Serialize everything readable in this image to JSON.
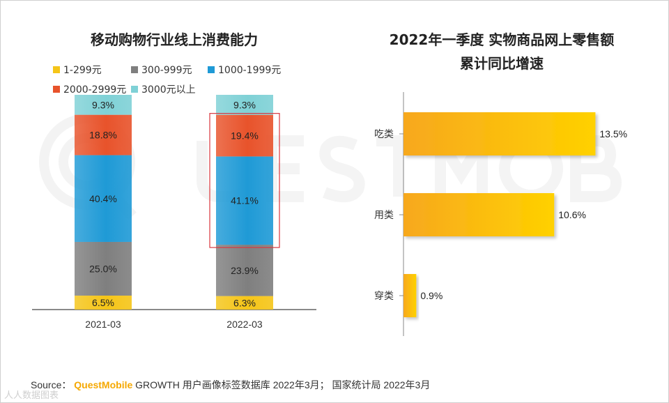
{
  "left_panel": {
    "title": "移动购物行业线上消费能力",
    "legend": [
      {
        "label": "1-299元",
        "color": "#f5c518"
      },
      {
        "label": "300-999元",
        "color": "#7f7f7f"
      },
      {
        "label": "1000-1999元",
        "color": "#1f9ad6"
      },
      {
        "label": "2000-2999元",
        "color": "#e8532b"
      },
      {
        "label": "3000元以上",
        "color": "#7fd1d6"
      }
    ]
  },
  "right_panel": {
    "title_line1": "2022年一季度 实物商品网上零售额",
    "title_line2": "累计同比增速"
  },
  "footer": {
    "source_prefix": "Source：",
    "brand": "QuestMobile",
    "source_text": "GROWTH 用户画像标签数据库 2022年3月； 国家统计局 2022年3月",
    "corner_mark": "人人数据图表"
  },
  "chart_data": [
    {
      "type": "bar",
      "stacked": true,
      "title": "移动购物行业线上消费能力",
      "categories": [
        "2021-03",
        "2022-03"
      ],
      "unit": "%",
      "series": [
        {
          "name": "1-299元",
          "color": "#f5c518",
          "values": [
            6.5,
            6.3
          ],
          "labels": [
            "6.5%",
            "6.3%"
          ]
        },
        {
          "name": "300-999元",
          "color": "#7f7f7f",
          "values": [
            25.0,
            23.9
          ],
          "labels": [
            "25.0%",
            "23.9%"
          ]
        },
        {
          "name": "1000-1999元",
          "color": "#1f9ad6",
          "values": [
            40.4,
            41.1
          ],
          "labels": [
            "40.4%",
            "41.1%"
          ]
        },
        {
          "name": "2000-2999元",
          "color": "#e8532b",
          "values": [
            18.8,
            19.4
          ],
          "labels": [
            "18.8%",
            "19.4%"
          ]
        },
        {
          "name": "3000元以上",
          "color": "#7fd1d6",
          "values": [
            9.3,
            9.3
          ],
          "labels": [
            "9.3%",
            "9.3%"
          ]
        }
      ],
      "highlight": {
        "category": "2022-03",
        "series": [
          "1000-1999元",
          "2000-2999元"
        ],
        "color": "#d9363e"
      },
      "legend_position": "top",
      "grid": false
    },
    {
      "type": "bar",
      "orientation": "horizontal",
      "title": "2022年一季度 实物商品网上零售额累计同比增速",
      "categories": [
        "吃类",
        "用类",
        "穿类"
      ],
      "values": [
        13.5,
        10.6,
        0.9
      ],
      "labels": [
        "13.5%",
        "10.6%",
        "0.9%"
      ],
      "unit": "%",
      "xlim": [
        0,
        15
      ],
      "color": "#f7b81a",
      "grid": false
    }
  ]
}
